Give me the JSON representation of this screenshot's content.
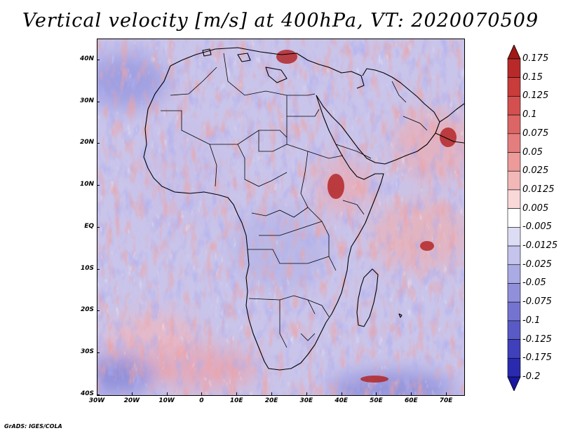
{
  "title": "Vertical velocity [m/s] at 400hPa, VT: 2020070509",
  "credit": "GrADS: IGES/COLA",
  "map": {
    "lat_labels": [
      "40N",
      "30N",
      "20N",
      "10N",
      "EQ",
      "10S",
      "20S",
      "30S",
      "40S"
    ],
    "lon_labels": [
      "30W",
      "20W",
      "10W",
      "0",
      "10E",
      "20E",
      "30E",
      "40E",
      "50E",
      "60E",
      "70E"
    ],
    "lat_range": [
      -40,
      45
    ],
    "lon_range": [
      -30,
      75
    ]
  },
  "colorbar": {
    "labels": [
      "0.175",
      "0.15",
      "0.125",
      "0.1",
      "0.075",
      "0.05",
      "0.025",
      "0.0125",
      "0.005",
      "-0.005",
      "-0.0125",
      "-0.025",
      "-0.05",
      "-0.075",
      "-0.1",
      "-0.125",
      "-0.175",
      "-0.2"
    ],
    "colors": [
      "#a01818",
      "#b82a2a",
      "#c83c3c",
      "#d45050",
      "#dc6666",
      "#e47e7e",
      "#ec9a9a",
      "#f2b8b8",
      "#f8d8d8",
      "#ffffff",
      "#dcdcf4",
      "#c4c4ec",
      "#aaaae4",
      "#9090da",
      "#7474d0",
      "#5a5ac6",
      "#4040ba",
      "#2a2aae",
      "#1818a0"
    ]
  }
}
